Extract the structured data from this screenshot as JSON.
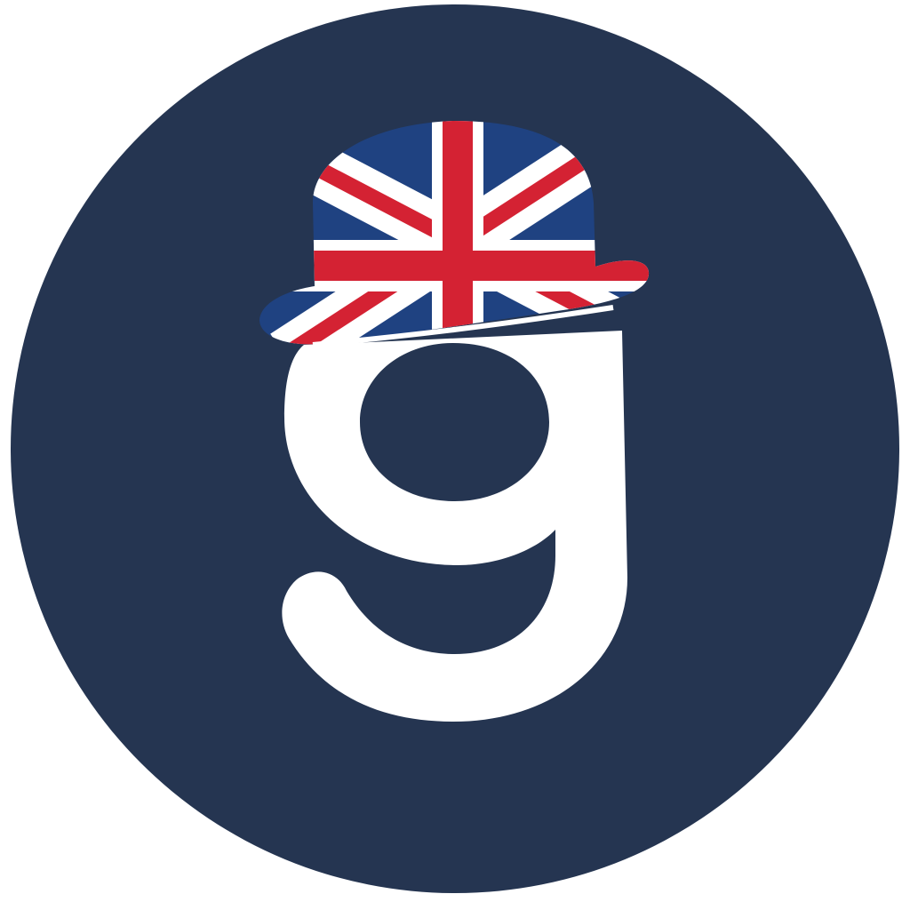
{
  "logo": {
    "name": "g",
    "colors": {
      "background_circle": "#253551",
      "letter": "#ffffff",
      "flag_blue": "#1f4281",
      "flag_red": "#d42233",
      "flag_white": "#ffffff"
    },
    "icons": [
      "logo-circle",
      "letter-g-icon",
      "bowler-hat-icon",
      "union-jack-flag"
    ]
  }
}
